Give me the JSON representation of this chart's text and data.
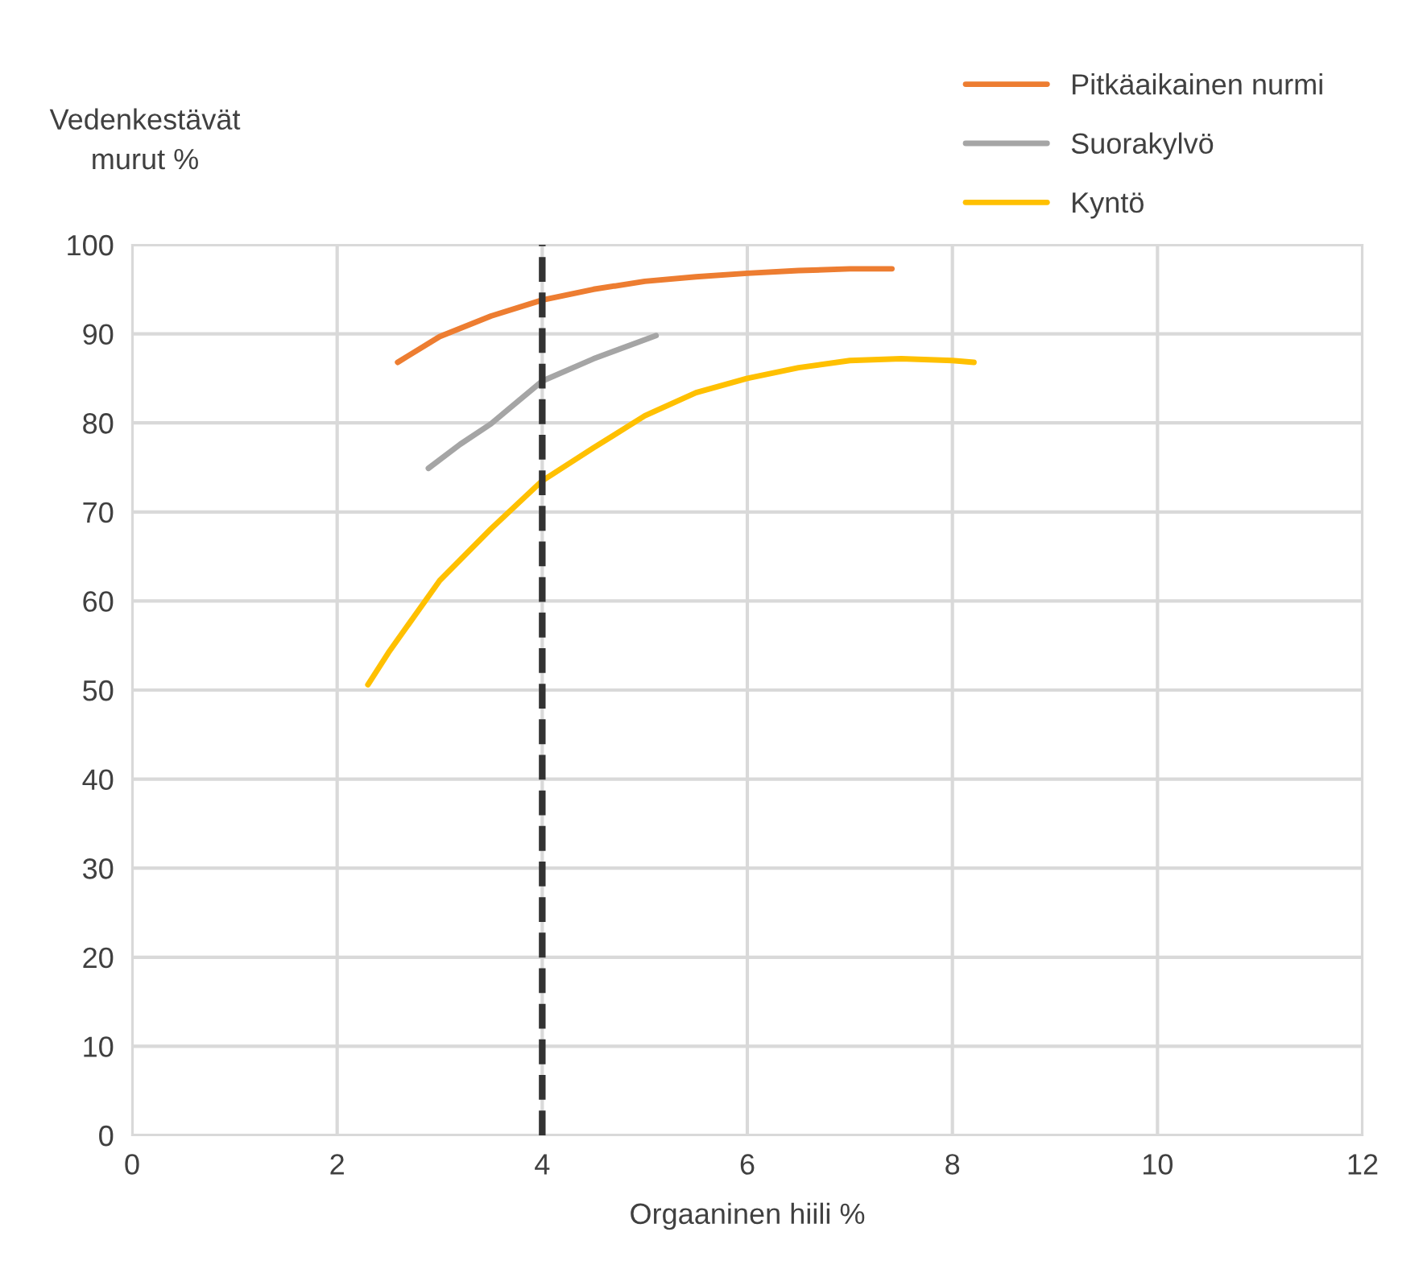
{
  "chart_data": {
    "type": "line",
    "xlabel": "Orgaaninen hiili %",
    "ylabel": "Vedenkestävät\nmurut %",
    "xlim": [
      0,
      12
    ],
    "xticks": [
      0,
      2,
      4,
      6,
      8,
      10,
      12
    ],
    "ylim": [
      0,
      100
    ],
    "yticks": [
      0,
      10,
      20,
      30,
      40,
      50,
      60,
      70,
      80,
      90,
      100
    ],
    "grid": true,
    "legend": "top right",
    "marker": "none",
    "line_style": "solid",
    "ref_lines": [
      {
        "axis": "x",
        "value": 4,
        "label": null,
        "color": "#333333",
        "line_style": "dashed"
      }
    ],
    "series": [
      {
        "name": "Pitkäaikainen nurmi",
        "color": "#ed7d31",
        "x": [
          2.59,
          3,
          3.5,
          4,
          4.5,
          5,
          5.5,
          6,
          6.5,
          7,
          7.41
        ],
        "values": [
          86.8,
          89.7,
          92.0,
          93.8,
          95.0,
          95.9,
          96.4,
          96.8,
          97.1,
          97.3,
          97.3
        ]
      },
      {
        "name": "Suorakylvö",
        "color": "#a5a5a5",
        "x": [
          2.89,
          3.2,
          3.5,
          4,
          4.5,
          5.11
        ],
        "values": [
          74.9,
          77.6,
          79.9,
          84.7,
          87.2,
          89.8
        ]
      },
      {
        "name": "Kyntö",
        "color": "#ffc000",
        "x": [
          2.3,
          2.5,
          3,
          3.5,
          4,
          4.5,
          5,
          5.5,
          6,
          6.5,
          7,
          7.5,
          8,
          8.21
        ],
        "values": [
          50.6,
          54.2,
          62.3,
          68.1,
          73.5,
          77.2,
          80.8,
          83.4,
          85.0,
          86.2,
          87.0,
          87.2,
          87.0,
          86.8
        ]
      }
    ]
  }
}
